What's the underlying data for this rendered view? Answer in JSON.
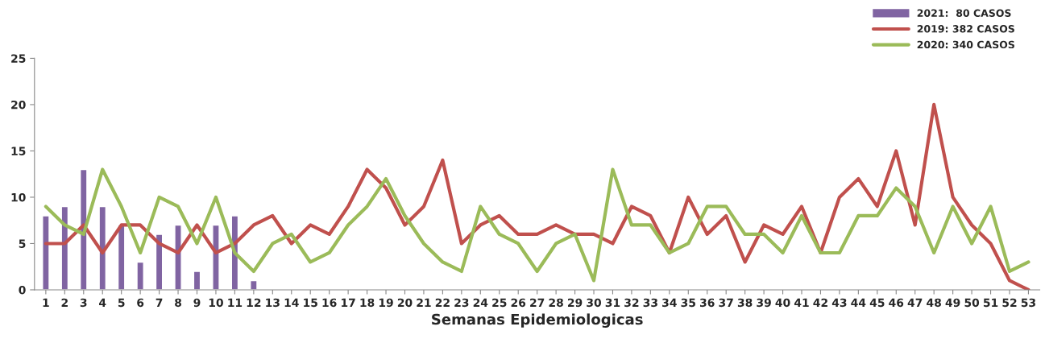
{
  "chart_data": {
    "type": "bar",
    "xlabel": "Semanas Epidemiologicas",
    "categories": [
      "1",
      "2",
      "3",
      "4",
      "5",
      "6",
      "7",
      "8",
      "9",
      "10",
      "11",
      "12",
      "13",
      "14",
      "15",
      "16",
      "17",
      "18",
      "19",
      "20",
      "21",
      "22",
      "23",
      "24",
      "25",
      "26",
      "27",
      "28",
      "29",
      "30",
      "31",
      "32",
      "33",
      "34",
      "35",
      "36",
      "37",
      "38",
      "39",
      "40",
      "41",
      "42",
      "43",
      "44",
      "45",
      "46",
      "47",
      "48",
      "49",
      "50",
      "51",
      "52",
      "53"
    ],
    "series": [
      {
        "name": "2021:  80 CASOS",
        "color": "#8064a2",
        "values": [
          8,
          9,
          13,
          9,
          7,
          3,
          6,
          7,
          2,
          7,
          8,
          1,
          null,
          null,
          null,
          null,
          null,
          null,
          null,
          null,
          null,
          null,
          null,
          null,
          null,
          null,
          null,
          null,
          null,
          null,
          null,
          null,
          null,
          null,
          null,
          null,
          null,
          null,
          null,
          null,
          null,
          null,
          null,
          null,
          null,
          null,
          null,
          null,
          null,
          null,
          null,
          null,
          null
        ]
      },
      {
        "name": "2019: 382 CASOS",
        "type": "line",
        "color": "#c0504d",
        "values": [
          5,
          5,
          7,
          4,
          7,
          7,
          5,
          4,
          7,
          4,
          5,
          7,
          8,
          5,
          7,
          6,
          9,
          13,
          11,
          7,
          9,
          14,
          5,
          7,
          8,
          6,
          6,
          7,
          6,
          6,
          5,
          9,
          8,
          4,
          10,
          6,
          8,
          3,
          7,
          6,
          9,
          4,
          10,
          12,
          9,
          15,
          7,
          20,
          10,
          7,
          5,
          1,
          0
        ]
      },
      {
        "name": "2020: 340 CASOS",
        "type": "line",
        "color": "#9bbb59",
        "values": [
          9,
          7,
          6,
          13,
          9,
          4,
          10,
          9,
          5,
          10,
          4,
          2,
          5,
          6,
          3,
          4,
          7,
          9,
          12,
          8,
          5,
          3,
          2,
          9,
          6,
          5,
          2,
          5,
          6,
          1,
          13,
          7,
          7,
          4,
          5,
          9,
          9,
          6,
          6,
          4,
          8,
          4,
          4,
          8,
          8,
          11,
          9,
          4,
          9,
          5,
          9,
          2,
          3
        ]
      }
    ],
    "ylim": [
      0,
      25
    ],
    "yticks": [
      0,
      5,
      10,
      15,
      20,
      25
    ],
    "grid": false,
    "legend": "top right",
    "marker": "none",
    "line_style": "solid"
  }
}
